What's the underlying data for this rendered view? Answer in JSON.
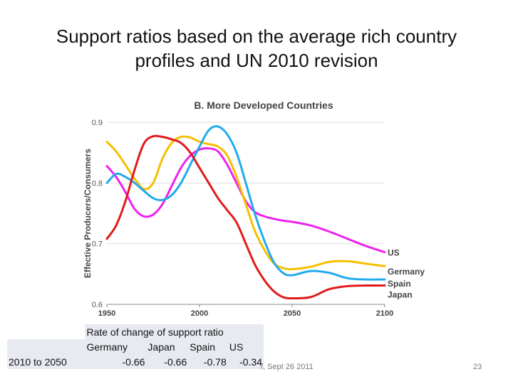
{
  "slide": {
    "title_line1": "Support ratios based on the average rich country",
    "title_line2": "profiles and UN 2010 revision",
    "footer": "/, Sept 26 2011",
    "page_number": "23"
  },
  "chart_data": {
    "type": "line",
    "title": "B.  More Developed Countries",
    "xlabel": "",
    "ylabel": "Effective Producers/Consumers",
    "xlim": [
      1950,
      2100
    ],
    "ylim": [
      0.6,
      0.9
    ],
    "xticks": [
      1950,
      2000,
      2050,
      2100
    ],
    "yticks": [
      0.6,
      0.7,
      0.8,
      0.9
    ],
    "ytick_labels": [
      "0.6",
      "0.7",
      "0.8",
      "0.9"
    ],
    "grid": true,
    "series": [
      {
        "name": "US",
        "color": "#ee22ee",
        "x": [
          1950,
          1955,
          1960,
          1965,
          1970,
          1975,
          1980,
          1985,
          1990,
          1995,
          2000,
          2005,
          2010,
          2015,
          2020,
          2025,
          2030,
          2035,
          2040,
          2045,
          2050,
          2060,
          2070,
          2080,
          2090,
          2100
        ],
        "y": [
          0.828,
          0.81,
          0.785,
          0.757,
          0.745,
          0.748,
          0.765,
          0.795,
          0.825,
          0.845,
          0.855,
          0.857,
          0.852,
          0.83,
          0.8,
          0.77,
          0.752,
          0.745,
          0.741,
          0.738,
          0.736,
          0.73,
          0.72,
          0.708,
          0.696,
          0.686
        ]
      },
      {
        "name": "Germany",
        "color": "#f5c000",
        "x": [
          1950,
          1955,
          1960,
          1965,
          1970,
          1975,
          1980,
          1985,
          1990,
          1995,
          2000,
          2005,
          2010,
          2015,
          2020,
          2025,
          2030,
          2035,
          2040,
          2045,
          2050,
          2060,
          2070,
          2080,
          2090,
          2100
        ],
        "y": [
          0.868,
          0.852,
          0.83,
          0.807,
          0.79,
          0.8,
          0.84,
          0.866,
          0.876,
          0.875,
          0.868,
          0.864,
          0.86,
          0.845,
          0.81,
          0.765,
          0.72,
          0.69,
          0.668,
          0.66,
          0.658,
          0.662,
          0.67,
          0.671,
          0.667,
          0.663
        ]
      },
      {
        "name": "Spain",
        "color": "#22aaee",
        "x": [
          1950,
          1955,
          1960,
          1965,
          1970,
          1975,
          1980,
          1985,
          1990,
          1995,
          2000,
          2005,
          2010,
          2015,
          2020,
          2025,
          2030,
          2035,
          2040,
          2045,
          2050,
          2060,
          2070,
          2080,
          2090,
          2100
        ],
        "y": [
          0.8,
          0.815,
          0.81,
          0.8,
          0.787,
          0.775,
          0.772,
          0.78,
          0.8,
          0.83,
          0.86,
          0.887,
          0.893,
          0.88,
          0.85,
          0.8,
          0.748,
          0.705,
          0.67,
          0.652,
          0.648,
          0.655,
          0.652,
          0.643,
          0.641,
          0.641
        ]
      },
      {
        "name": "Japan",
        "color": "#e01b1b",
        "x": [
          1950,
          1955,
          1960,
          1965,
          1970,
          1975,
          1980,
          1985,
          1990,
          1995,
          2000,
          2005,
          2010,
          2015,
          2020,
          2025,
          2030,
          2035,
          2040,
          2045,
          2050,
          2060,
          2070,
          2080,
          2090,
          2100
        ],
        "y": [
          0.708,
          0.73,
          0.77,
          0.822,
          0.865,
          0.877,
          0.876,
          0.872,
          0.866,
          0.85,
          0.825,
          0.8,
          0.775,
          0.755,
          0.735,
          0.7,
          0.665,
          0.64,
          0.622,
          0.612,
          0.61,
          0.612,
          0.625,
          0.63,
          0.631,
          0.631
        ]
      }
    ]
  },
  "rate_table": {
    "title": "Rate of change of support ratio",
    "headers": [
      "Germany",
      "Japan",
      "Spain",
      "US"
    ],
    "row_label": "2010 to 2050",
    "values": [
      "-0.66",
      "-0.66",
      "-0.78",
      "-0.34"
    ]
  }
}
